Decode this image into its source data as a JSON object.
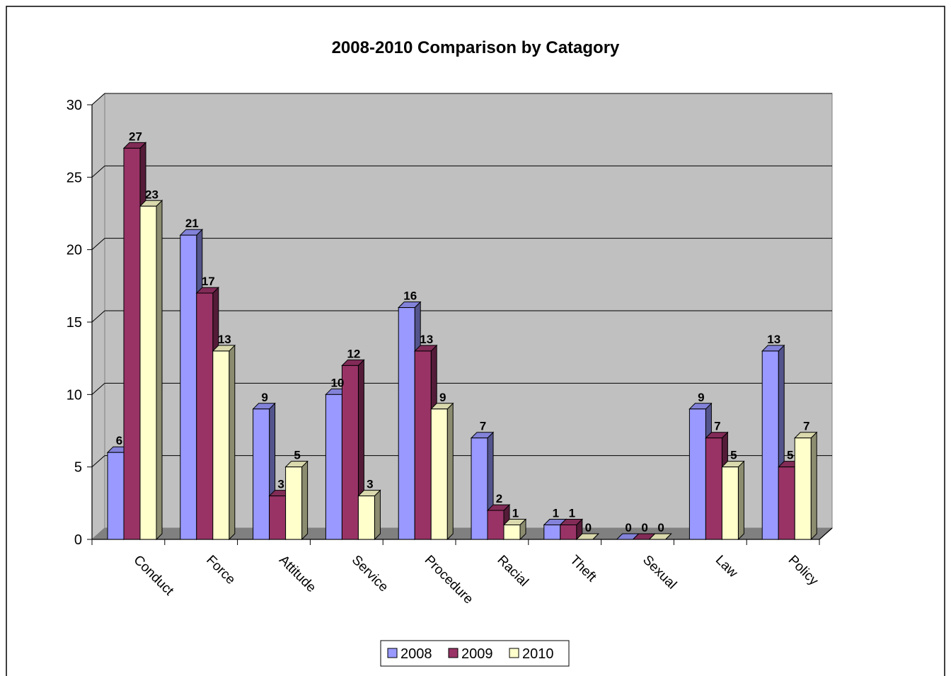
{
  "chart_data": {
    "type": "bar",
    "title": "2008-2010 Comparison by Catagory",
    "categories": [
      "Conduct",
      "Force",
      "Attitude",
      "Service",
      "Procedure",
      "Racial",
      "Theft",
      "Sexual",
      "Law",
      "Policy"
    ],
    "series": [
      {
        "name": "2008",
        "color": "#9999ff",
        "values": [
          6,
          21,
          9,
          10,
          16,
          7,
          1,
          0,
          9,
          13
        ]
      },
      {
        "name": "2009",
        "color": "#993366",
        "values": [
          27,
          17,
          3,
          12,
          13,
          2,
          1,
          0,
          7,
          5
        ]
      },
      {
        "name": "2010",
        "color": "#ffffcc",
        "values": [
          23,
          13,
          5,
          3,
          9,
          1,
          0,
          0,
          5,
          7
        ]
      }
    ],
    "ylim": [
      0,
      30
    ],
    "yticks": [
      0,
      5,
      10,
      15,
      20,
      25,
      30
    ],
    "grid": true,
    "legend": "bottom",
    "style": "3d-clustered-column",
    "plot_background": "#c0c0c0"
  }
}
